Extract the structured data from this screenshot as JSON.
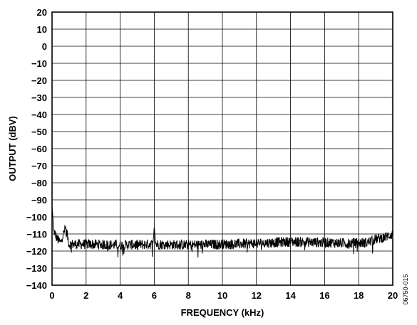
{
  "chart_data": {
    "type": "line",
    "xlabel": "FREQUENCY (kHz)",
    "ylabel": "OUTPUT (dBV)",
    "xlim": [
      0,
      20
    ],
    "ylim": [
      -140,
      20
    ],
    "x_ticks": [
      0,
      2,
      4,
      6,
      8,
      10,
      12,
      14,
      16,
      18,
      20
    ],
    "y_ticks": [
      20,
      10,
      0,
      -10,
      -20,
      -30,
      -40,
      -50,
      -60,
      -70,
      -80,
      -90,
      -100,
      -110,
      -120,
      -130,
      -140
    ],
    "x_tick_labels": [
      "0",
      "2",
      "4",
      "6",
      "8",
      "10",
      "12",
      "14",
      "16",
      "18",
      "20"
    ],
    "y_tick_labels": [
      "20",
      "10",
      "0",
      "−10",
      "−20",
      "−30",
      "−40",
      "−50",
      "−60",
      "−70",
      "−80",
      "−90",
      "−100",
      "−110",
      "−120",
      "−130",
      "−140"
    ],
    "grid": true,
    "series": [
      {
        "points": [
          [
            0.0,
            -94
          ],
          [
            0.1,
            -108
          ],
          [
            0.3,
            -113
          ],
          [
            0.5,
            -115
          ],
          [
            0.8,
            -106
          ],
          [
            1.0,
            -116
          ],
          [
            2.0,
            -116
          ],
          [
            4.0,
            -116.5
          ],
          [
            5.9,
            -116
          ],
          [
            6.0,
            -106
          ],
          [
            6.1,
            -116
          ],
          [
            8.0,
            -116.5
          ],
          [
            10.0,
            -116
          ],
          [
            12.0,
            -115.5
          ],
          [
            14.0,
            -114.5
          ],
          [
            16.0,
            -115
          ],
          [
            17.5,
            -115.5
          ],
          [
            18.5,
            -115
          ],
          [
            19.0,
            -113
          ],
          [
            19.5,
            -112
          ],
          [
            20.0,
            -110
          ]
        ],
        "noise_band_db": 3
      }
    ],
    "figure_id": "06750-015"
  }
}
